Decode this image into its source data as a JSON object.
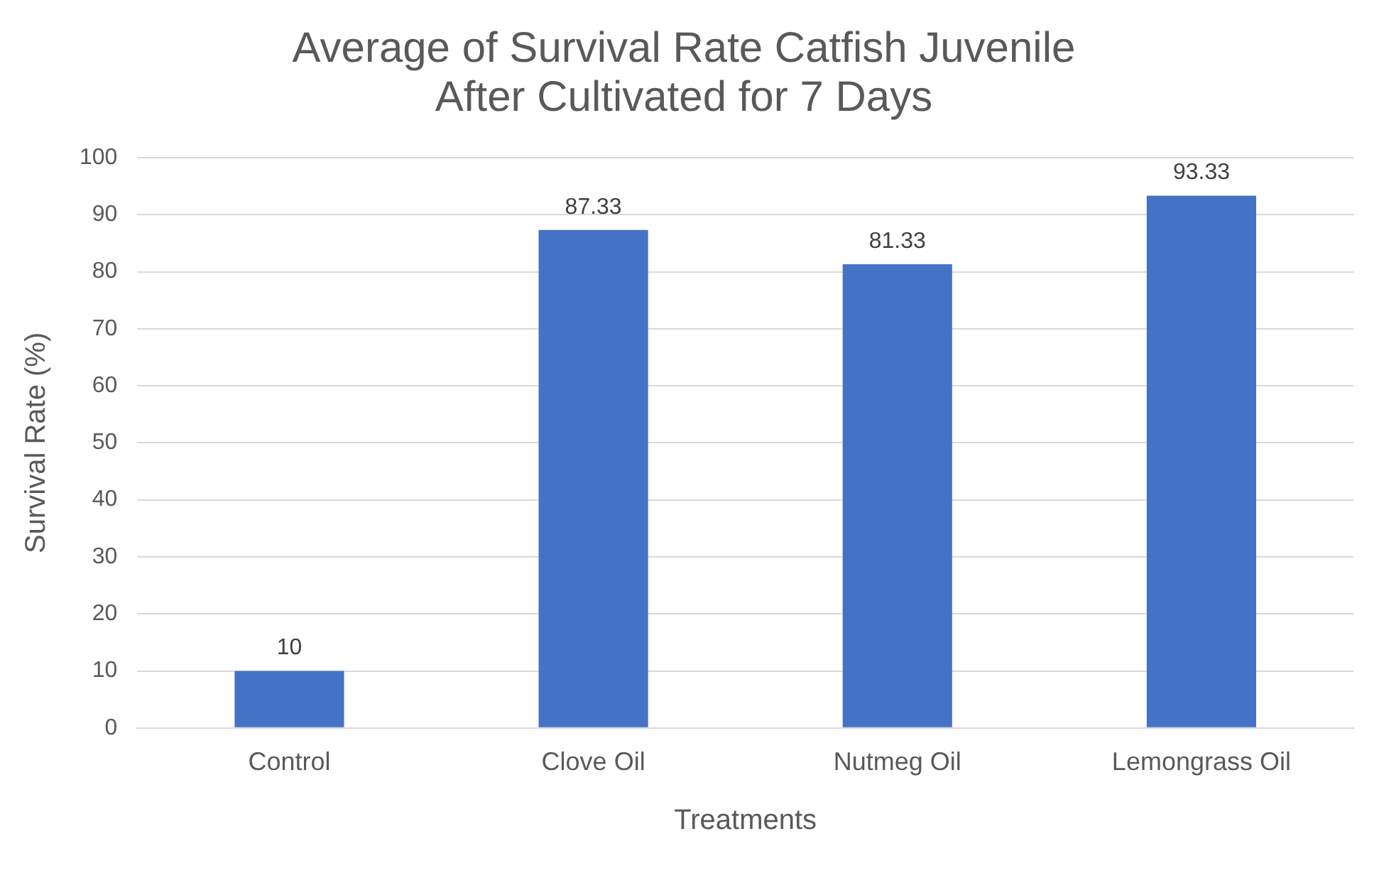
{
  "chart_data": {
    "type": "bar",
    "title": "Average of Survival Rate Catfish Juvenile After Cultivated for 7 Days",
    "xlabel": "Treatments",
    "ylabel": "Survival Rate (%)",
    "categories": [
      "Control",
      "Clove Oil",
      "Nutmeg Oil",
      "Lemongrass Oil"
    ],
    "values": [
      10,
      87.33,
      81.33,
      93.33
    ],
    "color": "#4472c4",
    "ylim": [
      0,
      100
    ],
    "yticks": [
      0,
      10,
      20,
      30,
      40,
      50,
      60,
      70,
      80,
      90,
      100
    ],
    "grid": "y",
    "data_labels": true
  }
}
